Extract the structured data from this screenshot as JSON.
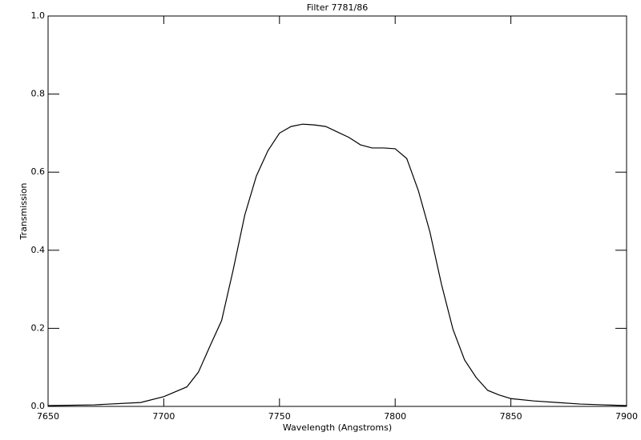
{
  "chart_data": {
    "type": "line",
    "title": "Filter 7781/86",
    "x_label": "Wavelength (Angstroms)",
    "y_label": "Transmission",
    "x": [
      7650,
      7670,
      7690,
      7700,
      7710,
      7715,
      7720,
      7725,
      7730,
      7735,
      7740,
      7745,
      7750,
      7755,
      7760,
      7765,
      7770,
      7775,
      7780,
      7785,
      7790,
      7795,
      7800,
      7805,
      7810,
      7815,
      7820,
      7825,
      7830,
      7835,
      7840,
      7845,
      7850,
      7860,
      7870,
      7880,
      7890,
      7900
    ],
    "series": [
      {
        "color": "#000000",
        "values": [
          0.002,
          0.004,
          0.01,
          0.025,
          0.05,
          0.088,
          0.155,
          0.22,
          0.35,
          0.49,
          0.59,
          0.655,
          0.7,
          0.717,
          0.723,
          0.721,
          0.717,
          0.703,
          0.689,
          0.67,
          0.662,
          0.662,
          0.66,
          0.635,
          0.553,
          0.447,
          0.313,
          0.197,
          0.119,
          0.074,
          0.041,
          0.029,
          0.02,
          0.014,
          0.01,
          0.006,
          0.004,
          0.002
        ]
      }
    ],
    "xlim": [
      7650,
      7900
    ],
    "xticks": [
      7650,
      7700,
      7750,
      7800,
      7850,
      7900
    ],
    "ylim": [
      0,
      1
    ],
    "yticks": [
      {
        "value": 0,
        "label": "0.0"
      },
      0.2,
      0.4,
      0.6,
      0.8,
      {
        "value": 1,
        "label": "1.0"
      }
    ]
  }
}
